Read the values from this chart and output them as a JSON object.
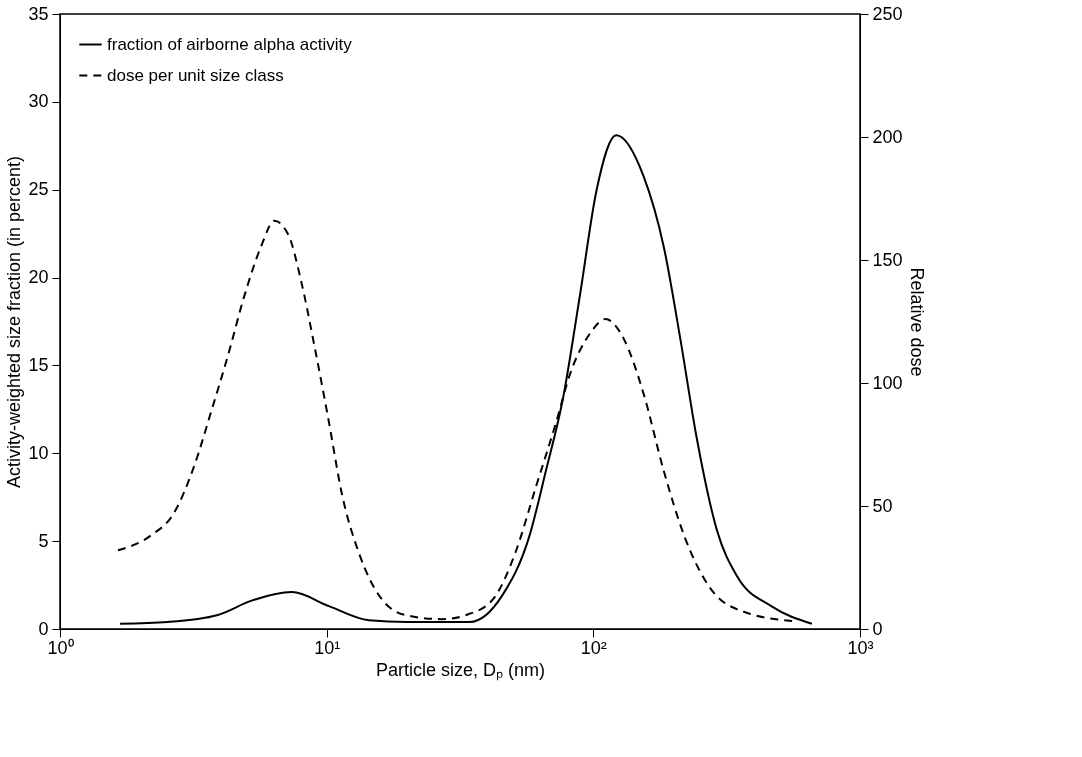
{
  "chart_data": {
    "type": "line",
    "xlabel": "Particle size, Dₚ (nm)",
    "ylabel": "Activity-weighted size fraction (in percent)",
    "y2label": "Relative dose",
    "log": "x",
    "xlim": [
      1,
      1000
    ],
    "xticks": [
      {
        "value": 1,
        "label": "10⁰"
      },
      {
        "value": 10,
        "label": "10¹"
      },
      {
        "value": 100,
        "label": "10²"
      },
      {
        "value": 1000,
        "label": "10³"
      }
    ],
    "ylim": [
      0,
      35
    ],
    "yticks": [
      0,
      5,
      10,
      15,
      20,
      25,
      30,
      35
    ],
    "y2lim": [
      0,
      250
    ],
    "y2ticks": [
      0,
      50,
      100,
      150,
      200,
      250
    ],
    "legend": "top left",
    "grid": false,
    "marker": "none",
    "series": [
      {
        "name": "fraction of airborne alpha activity",
        "color": "#000000",
        "line_style": "solid",
        "x": [
          1.68,
          2.53,
          3.91,
          5.2,
          7.4,
          10.2,
          14.4,
          20,
          34.4,
          45.5,
          57.6,
          66.4,
          76.9,
          89.1,
          102.6,
          122,
          154,
          184,
          212,
          244,
          291,
          346,
          465,
          660
        ],
        "values": [
          0.3,
          0.4,
          0.8,
          1.6,
          2.1,
          1.3,
          0.5,
          0.4,
          0.4,
          1.9,
          5.3,
          9.0,
          13.1,
          19.0,
          24.9,
          28.1,
          25.8,
          21.7,
          16.5,
          10.9,
          5.6,
          3.0,
          1.3,
          0.3
        ]
      },
      {
        "name": "dose per unit size class",
        "color": "#000000",
        "line_style": "dashed",
        "axis": "y2",
        "x": [
          1.65,
          2.19,
          2.67,
          3.18,
          3.68,
          4.26,
          4.9,
          5.7,
          6.36,
          7.2,
          8.0,
          9.0,
          10.2,
          11.4,
          13.2,
          19.2,
          27,
          34,
          42,
          51,
          61,
          72.5,
          82,
          97,
          111,
          130,
          154,
          184,
          219,
          277,
          367,
          584
        ],
        "values": [
          32,
          38,
          47,
          66,
          88,
          111,
          135,
          156,
          166,
          160,
          142,
          115,
          84,
          55,
          31,
          6,
          4,
          6,
          12,
          31,
          58,
          84,
          104,
          120,
          126,
          118,
          96,
          64,
          38,
          16,
          7,
          3
        ]
      }
    ]
  }
}
